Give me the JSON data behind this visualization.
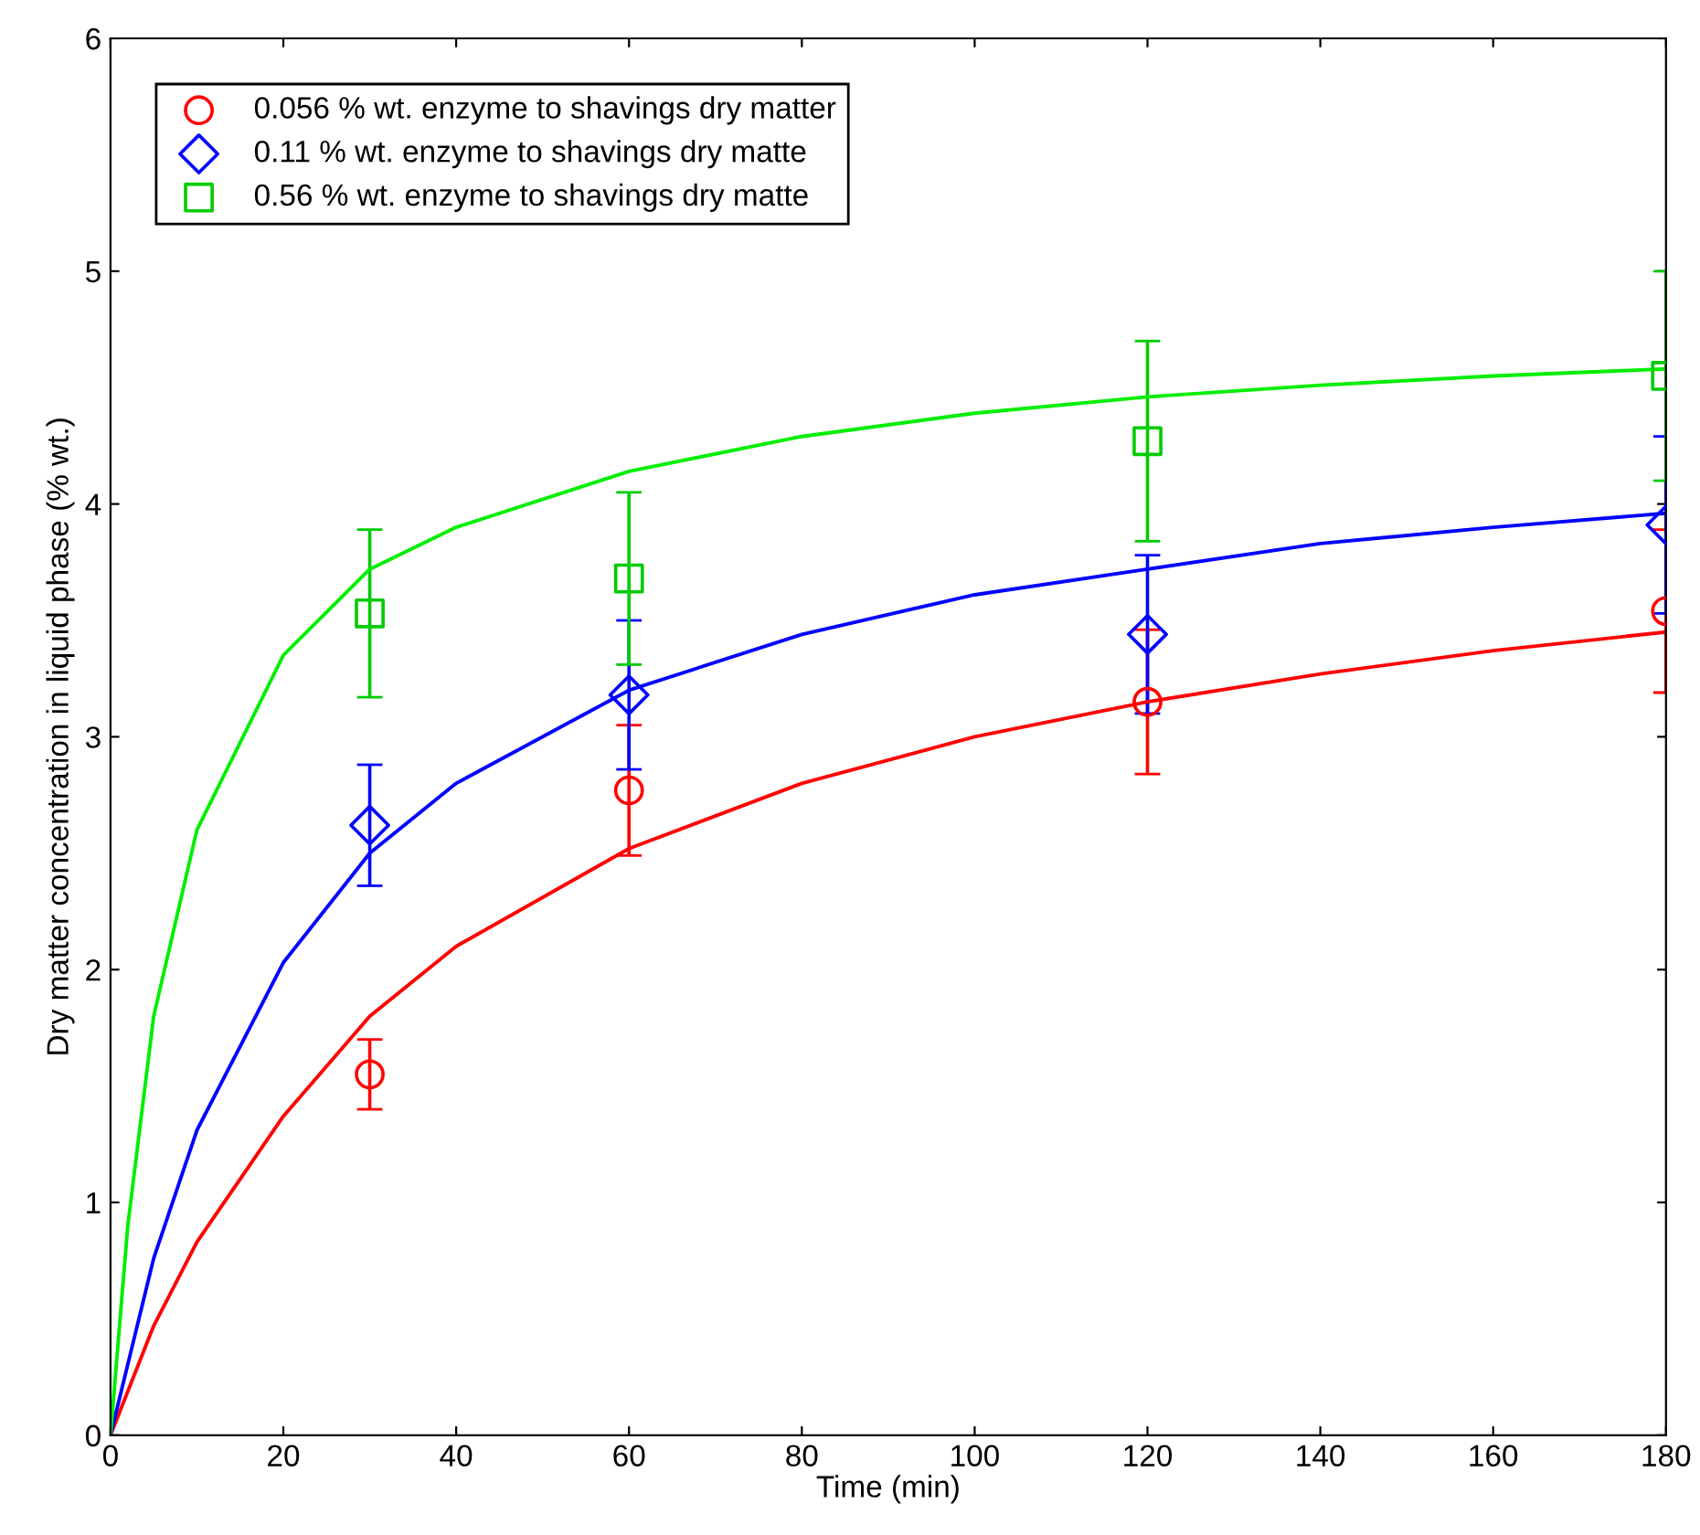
{
  "chart_data": {
    "type": "scatter",
    "xlabel": "Time (min)",
    "ylabel": "Dry matter concentration in liquid phase (% wt.)",
    "xlim": [
      0,
      180
    ],
    "ylim": [
      0,
      6
    ],
    "xticks": [
      0,
      20,
      40,
      60,
      80,
      100,
      120,
      140,
      160,
      180
    ],
    "yticks": [
      0,
      1,
      2,
      3,
      4,
      5,
      6
    ],
    "grid": false,
    "legend": "top left",
    "series": [
      {
        "name": "0.056 % wt. enzyme to shavings dry matter",
        "marker": "circle",
        "color": "#ff0000",
        "x": [
          30,
          60,
          120,
          180
        ],
        "values": [
          1.55,
          2.77,
          3.15,
          3.54
        ],
        "errors": [
          0.15,
          0.28,
          0.31,
          0.35
        ]
      },
      {
        "name": "0.11 % wt. enzyme to shavings dry matte",
        "marker": "diamond",
        "color": "#0000ff",
        "x": [
          30,
          60,
          120,
          180
        ],
        "values": [
          2.62,
          3.18,
          3.44,
          3.91
        ],
        "errors": [
          0.26,
          0.32,
          0.34,
          0.38
        ]
      },
      {
        "name": "0.56 % wt. enzyme to shavings dry matte",
        "marker": "square",
        "color": "#00cc00",
        "x": [
          30,
          60,
          120,
          180
        ],
        "values": [
          3.53,
          3.68,
          4.27,
          4.55
        ],
        "errors": [
          0.36,
          0.37,
          0.43,
          0.45
        ]
      },
      {
        "type": "line",
        "color": "#ff0000",
        "x": [
          0,
          5,
          10,
          20,
          30,
          40,
          60,
          80,
          100,
          120,
          140,
          160,
          180
        ],
        "values": [
          0,
          0.47,
          0.83,
          1.37,
          1.8,
          2.1,
          2.52,
          2.8,
          3.0,
          3.15,
          3.27,
          3.37,
          3.45
        ]
      },
      {
        "type": "line",
        "color": "#0000ff",
        "x": [
          0,
          5,
          10,
          20,
          30,
          40,
          60,
          80,
          100,
          120,
          140,
          160,
          180
        ],
        "values": [
          0,
          0.76,
          1.31,
          2.03,
          2.5,
          2.8,
          3.2,
          3.44,
          3.61,
          3.72,
          3.83,
          3.9,
          3.96
        ]
      },
      {
        "type": "line",
        "color": "#00ee00",
        "x": [
          0,
          2,
          5,
          10,
          20,
          30,
          40,
          60,
          80,
          100,
          120,
          140,
          160,
          180
        ],
        "values": [
          0,
          0.9,
          1.8,
          2.6,
          3.35,
          3.72,
          3.9,
          4.14,
          4.29,
          4.39,
          4.46,
          4.51,
          4.55,
          4.58
        ]
      }
    ]
  }
}
